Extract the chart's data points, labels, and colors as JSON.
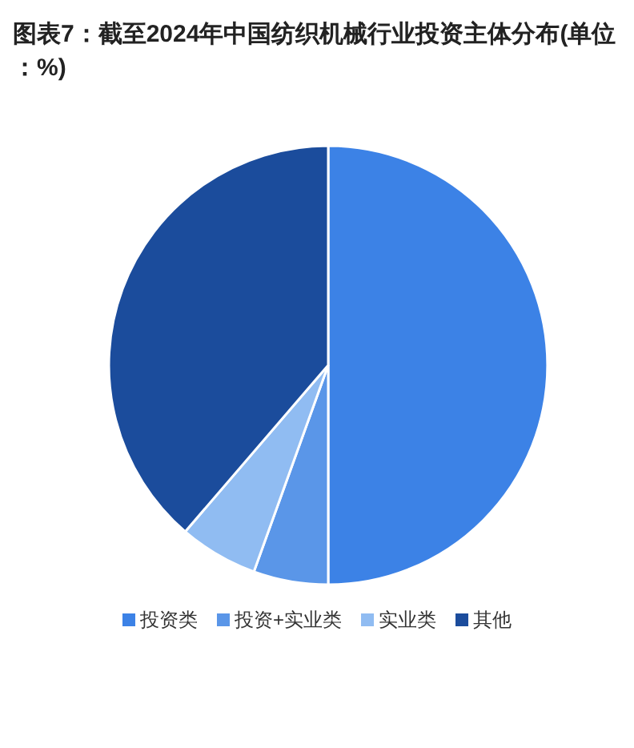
{
  "chart_data": {
    "type": "pie",
    "title": "图表7：截至2024年中国纺织机械行业投资主体分布(单位：%)",
    "categories": [
      "投资类",
      "投资+实业类",
      "实业类",
      "其他"
    ],
    "values": [
      50,
      5.5,
      5.8,
      38.7
    ],
    "colors": [
      "#3c82e6",
      "#5a96e8",
      "#90bcf2",
      "#1b4c9c"
    ],
    "legend": "bottom"
  }
}
